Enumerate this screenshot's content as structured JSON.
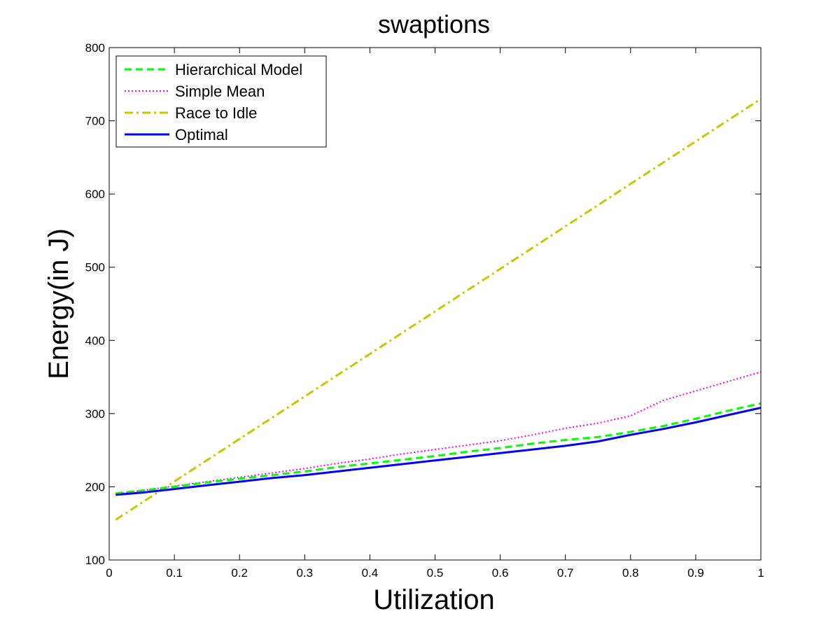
{
  "chart_data": {
    "type": "line",
    "title": "swaptions",
    "xlabel": "Utilization",
    "ylabel": "Energy(in J)",
    "xlim": [
      0,
      1
    ],
    "ylim": [
      100,
      800
    ],
    "x_ticks": [
      "0",
      "0.1",
      "0.2",
      "0.3",
      "0.4",
      "0.5",
      "0.6",
      "0.7",
      "0.8",
      "0.9",
      "1"
    ],
    "y_ticks": [
      "100",
      "200",
      "300",
      "400",
      "500",
      "600",
      "700",
      "800"
    ],
    "grid": false,
    "legend_position": "top-left",
    "series": [
      {
        "name": "Hierarchical Model",
        "color": "#00ff00",
        "style": "dashed",
        "x": [
          0.01,
          0.05,
          0.1,
          0.15,
          0.2,
          0.25,
          0.3,
          0.35,
          0.4,
          0.45,
          0.5,
          0.55,
          0.6,
          0.65,
          0.7,
          0.75,
          0.8,
          0.85,
          0.9,
          0.95,
          1.0
        ],
        "y": [
          191,
          195,
          200,
          206,
          211,
          216,
          221,
          227,
          232,
          237,
          242,
          248,
          253,
          259,
          264,
          268,
          275,
          283,
          293,
          304,
          314
        ]
      },
      {
        "name": "Simple Mean",
        "color": "#ff00ff",
        "style": "dotted",
        "x": [
          0.01,
          0.05,
          0.1,
          0.15,
          0.2,
          0.25,
          0.3,
          0.35,
          0.4,
          0.45,
          0.5,
          0.55,
          0.6,
          0.65,
          0.7,
          0.75,
          0.8,
          0.85,
          0.9,
          0.95,
          1.0
        ],
        "y": [
          190,
          195,
          201,
          207,
          213,
          219,
          225,
          232,
          238,
          245,
          251,
          257,
          263,
          271,
          280,
          287,
          297,
          318,
          331,
          344,
          357
        ]
      },
      {
        "name": "Race to Idle",
        "color": "#c8c800",
        "style": "dashdot",
        "x": [
          0.01,
          1.0
        ],
        "y": [
          155,
          730
        ]
      },
      {
        "name": "Optimal",
        "color": "#0000ff",
        "style": "solid",
        "x": [
          0.01,
          0.05,
          0.1,
          0.15,
          0.2,
          0.25,
          0.3,
          0.35,
          0.4,
          0.45,
          0.5,
          0.55,
          0.6,
          0.65,
          0.7,
          0.75,
          0.8,
          0.85,
          0.9,
          0.95,
          1.0
        ],
        "y": [
          189,
          192,
          197,
          202,
          207,
          212,
          216,
          221,
          226,
          231,
          236,
          241,
          246,
          251,
          256,
          262,
          271,
          279,
          288,
          298,
          308
        ]
      }
    ]
  }
}
